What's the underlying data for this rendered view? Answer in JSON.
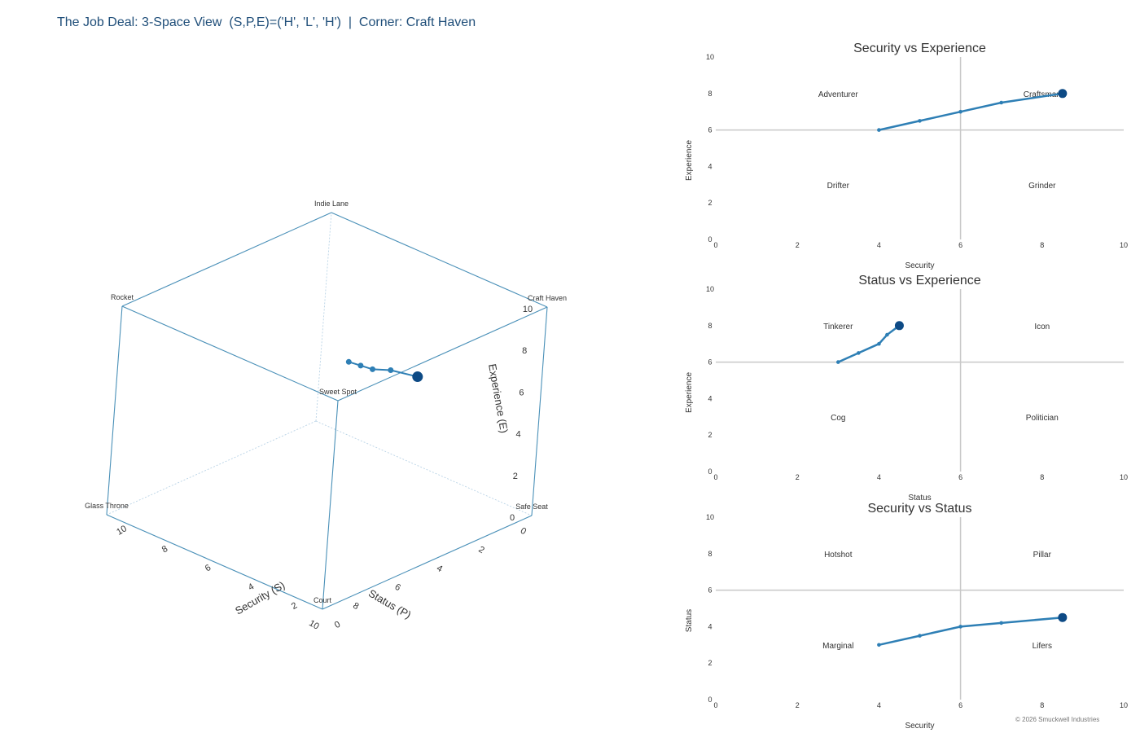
{
  "title": "The Job Deal: 3-Space View  (S,P,E)=('H', 'L', 'H')  |  Corner: Craft Haven",
  "copyright": "© 2026 Smuckwell Industries",
  "colors": {
    "title": "#1f4e79",
    "cube_edge": "#4a90b8",
    "line": "#2e7fb5",
    "endpoint": "#0d4a85",
    "midline": "#c8c8c8"
  },
  "chart_data": [
    {
      "type": "line3d",
      "xlabel": "Security (S)",
      "ylabel": "Status (P)",
      "zlabel": "Experience (E)",
      "xlim": [
        0,
        10
      ],
      "ylim": [
        0,
        10
      ],
      "zlim": [
        0,
        10
      ],
      "ticks": [
        "0",
        "2",
        "4",
        "6",
        "8",
        "10"
      ],
      "corners": [
        {
          "label": "Craft Haven",
          "S": 10,
          "P": 0,
          "E": 10
        },
        {
          "label": "Indie Lane",
          "S": 0,
          "P": 0,
          "E": 10
        },
        {
          "label": "Rocket",
          "S": 0,
          "P": 10,
          "E": 10
        },
        {
          "label": "Sweet Spot",
          "S": 10,
          "P": 10,
          "E": 10
        },
        {
          "label": "Safe Seat",
          "S": 10,
          "P": 0,
          "E": 0
        },
        {
          "label": "Glass Throne",
          "S": 0,
          "P": 10,
          "E": 0
        },
        {
          "label": "Court",
          "S": 10,
          "P": 10,
          "E": 0
        }
      ],
      "path": [
        {
          "S": 4,
          "P": 3,
          "E": 6
        },
        {
          "S": 5,
          "P": 3.5,
          "E": 6.5
        },
        {
          "S": 6,
          "P": 4,
          "E": 7
        },
        {
          "S": 7,
          "P": 4.2,
          "E": 7.5
        },
        {
          "S": 8.5,
          "P": 4.5,
          "E": 8
        }
      ]
    },
    {
      "type": "line",
      "title": "Security vs Experience",
      "xlabel": "Security",
      "ylabel": "Experience",
      "xlim": [
        0,
        10
      ],
      "ylim": [
        0,
        10
      ],
      "xticks": [
        0,
        2,
        4,
        6,
        8,
        10
      ],
      "yticks": [
        0,
        2,
        4,
        6,
        8,
        10
      ],
      "quadrants": [
        {
          "label": "Adventurer",
          "x": 3,
          "y": 8
        },
        {
          "label": "Craftsman",
          "x": 8,
          "y": 8
        },
        {
          "label": "Drifter",
          "x": 3,
          "y": 3
        },
        {
          "label": "Grinder",
          "x": 8,
          "y": 3
        }
      ],
      "x": [
        4,
        5,
        6,
        7,
        8.5
      ],
      "y": [
        6,
        6.5,
        7,
        7.5,
        8
      ]
    },
    {
      "type": "line",
      "title": "Status vs Experience",
      "xlabel": "Status",
      "ylabel": "Experience",
      "xlim": [
        0,
        10
      ],
      "ylim": [
        0,
        10
      ],
      "xticks": [
        0,
        2,
        4,
        6,
        8,
        10
      ],
      "yticks": [
        0,
        2,
        4,
        6,
        8,
        10
      ],
      "quadrants": [
        {
          "label": "Tinkerer",
          "x": 3,
          "y": 8
        },
        {
          "label": "Icon",
          "x": 8,
          "y": 8
        },
        {
          "label": "Cog",
          "x": 3,
          "y": 3
        },
        {
          "label": "Politician",
          "x": 8,
          "y": 3
        }
      ],
      "x": [
        3,
        3.5,
        4,
        4.2,
        4.5
      ],
      "y": [
        6,
        6.5,
        7,
        7.5,
        8
      ]
    },
    {
      "type": "line",
      "title": "Security vs Status",
      "xlabel": "Security",
      "ylabel": "Status",
      "xlim": [
        0,
        10
      ],
      "ylim": [
        0,
        10
      ],
      "xticks": [
        0,
        2,
        4,
        6,
        8,
        10
      ],
      "yticks": [
        0,
        2,
        4,
        6,
        8,
        10
      ],
      "quadrants": [
        {
          "label": "Hotshot",
          "x": 3,
          "y": 8
        },
        {
          "label": "Pillar",
          "x": 8,
          "y": 8
        },
        {
          "label": "Marginal",
          "x": 3,
          "y": 3
        },
        {
          "label": "Lifers",
          "x": 8,
          "y": 3
        }
      ],
      "x": [
        4,
        5,
        6,
        7,
        8.5
      ],
      "y": [
        3,
        3.5,
        4,
        4.2,
        4.5
      ]
    }
  ]
}
